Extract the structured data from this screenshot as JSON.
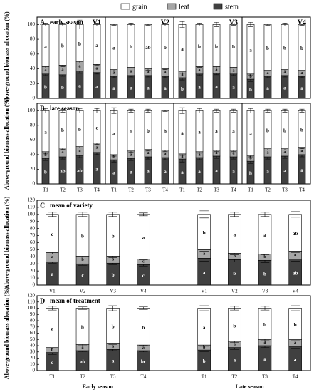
{
  "legend": [
    {
      "name": "grain",
      "color": "#ffffff"
    },
    {
      "name": "leaf",
      "color": "#a6a6a6"
    },
    {
      "name": "stem",
      "color": "#404040"
    }
  ],
  "chart_data": [
    {
      "type": "stacked_bar",
      "panel": "A",
      "title": "early season",
      "subtitle": "V1",
      "ylabel": "Above-ground biomass allocation (%)",
      "ylim": [
        0,
        110
      ],
      "yticks": [
        0,
        20,
        40,
        60,
        80,
        100
      ],
      "series": [
        {
          "values": [
            57,
            55,
            50,
            54
          ],
          "errors": [
            2,
            2,
            6,
            2
          ],
          "letters": [
            "a",
            "b",
            "b",
            "a"
          ]
        },
        {
          "values": [
            10,
            13,
            13,
            11
          ],
          "errors": [
            2,
            2,
            2,
            1
          ],
          "letters": [
            "a",
            "a",
            "a",
            "a"
          ]
        },
        {
          "values": [
            33,
            32,
            37,
            35
          ],
          "errors": [
            2,
            2,
            3,
            2
          ],
          "letters": [
            "b",
            "b",
            "a",
            "a"
          ]
        }
      ]
    },
    {
      "type": "stacked_bar",
      "subtitle": "V2",
      "ylim": [
        0,
        110
      ],
      "series": [
        {
          "values": [
            61,
            58,
            60,
            60
          ],
          "errors": [
            1,
            2,
            1,
            2
          ],
          "letters": [
            "a",
            "b",
            "ab",
            "b"
          ]
        },
        {
          "values": [
            9,
            11,
            9,
            10
          ],
          "errors": [
            2,
            1,
            2,
            1
          ],
          "letters": [
            "a",
            "a",
            "a",
            "a"
          ]
        },
        {
          "values": [
            30,
            31,
            31,
            30
          ],
          "errors": [
            2,
            2,
            2,
            2
          ],
          "letters": [
            "a",
            "a",
            "a",
            "a"
          ]
        }
      ]
    },
    {
      "type": "stacked_bar",
      "subtitle": "V3",
      "ylim": [
        0,
        110
      ],
      "series": [
        {
          "values": [
            64,
            57,
            57,
            58
          ],
          "errors": [
            4,
            2,
            3,
            1
          ],
          "letters": [
            "a",
            "b",
            "b",
            "b"
          ]
        },
        {
          "values": [
            8,
            10,
            9,
            9
          ],
          "errors": [
            2,
            1,
            2,
            1
          ],
          "letters": [
            "a",
            "a",
            "a",
            "a"
          ]
        },
        {
          "values": [
            28,
            33,
            34,
            33
          ],
          "errors": [
            3,
            2,
            2,
            2
          ],
          "letters": [
            "b",
            "a",
            "a",
            "a"
          ]
        }
      ]
    },
    {
      "type": "stacked_bar",
      "subtitle": "V4",
      "ylim": [
        0,
        110
      ],
      "series": [
        {
          "values": [
            67,
            62,
            61,
            62
          ],
          "errors": [
            3,
            1,
            2,
            1
          ],
          "letters": [
            "a",
            "b",
            "b",
            "b"
          ]
        },
        {
          "values": [
            7,
            8,
            8,
            8
          ],
          "errors": [
            2,
            1,
            2,
            1
          ],
          "letters": [
            "b",
            "a",
            "a",
            "a"
          ]
        },
        {
          "values": [
            26,
            30,
            31,
            30
          ],
          "errors": [
            3,
            2,
            2,
            2
          ],
          "letters": [
            "b",
            "a",
            "a",
            "a"
          ]
        }
      ]
    },
    {
      "type": "stacked_bar",
      "panel": "B",
      "title": "late season",
      "ylabel": "Above-ground biomass allocation (%)",
      "ylim": [
        0,
        110
      ],
      "yticks": [
        0,
        20,
        40,
        60,
        80,
        100
      ],
      "categories": [
        "T1",
        "T2",
        "T3",
        "T4"
      ],
      "series": [
        {
          "values": [
            56,
            51,
            49,
            44
          ],
          "errors": [
            3,
            2,
            3,
            3
          ],
          "letters": [
            "a",
            "b",
            "b",
            "c"
          ]
        },
        {
          "values": [
            9,
            12,
            12,
            13
          ],
          "errors": [
            3,
            2,
            2,
            2
          ],
          "letters": [
            "b",
            "a",
            "a",
            "a"
          ]
        },
        {
          "values": [
            35,
            37,
            39,
            43
          ],
          "errors": [
            3,
            3,
            3,
            3
          ],
          "letters": [
            "b",
            "ab",
            "ab",
            "a"
          ]
        }
      ]
    },
    {
      "type": "stacked_bar",
      "ylim": [
        0,
        110
      ],
      "categories": [
        "T1",
        "T2",
        "T3",
        "T4"
      ],
      "series": [
        {
          "values": [
            60,
            55,
            53,
            54
          ],
          "errors": [
            4,
            2,
            2,
            1
          ],
          "letters": [
            "a",
            "b",
            "b",
            "b"
          ]
        },
        {
          "values": [
            7,
            10,
            10,
            10
          ],
          "errors": [
            2,
            2,
            2,
            2
          ],
          "letters": [
            "b",
            "a",
            "a",
            "a"
          ]
        },
        {
          "values": [
            33,
            35,
            37,
            36
          ],
          "errors": [
            3,
            3,
            3,
            3
          ],
          "letters": [
            "a",
            "a",
            "a",
            "a"
          ]
        }
      ]
    },
    {
      "type": "stacked_bar",
      "ylim": [
        0,
        110
      ],
      "categories": [
        "T1",
        "T2",
        "T3",
        "T4"
      ],
      "series": [
        {
          "values": [
            59,
            56,
            54,
            54
          ],
          "errors": [
            4,
            3,
            2,
            2
          ],
          "letters": [
            "a",
            "a",
            "a",
            "a"
          ]
        },
        {
          "values": [
            7,
            8,
            8,
            9
          ],
          "errors": [
            2,
            2,
            2,
            2
          ],
          "letters": [
            "a",
            "a",
            "a",
            "a"
          ]
        },
        {
          "values": [
            34,
            36,
            38,
            37
          ],
          "errors": [
            4,
            3,
            3,
            3
          ],
          "letters": [
            "a",
            "a",
            "a",
            "a"
          ]
        }
      ]
    },
    {
      "type": "stacked_bar",
      "ylim": [
        0,
        110
      ],
      "categories": [
        "T1",
        "T2",
        "T3",
        "T4"
      ],
      "series": [
        {
          "values": [
            61,
            52,
            52,
            50
          ],
          "errors": [
            3,
            2,
            2,
            2
          ],
          "letters": [
            "a",
            "b",
            "b",
            "b"
          ]
        },
        {
          "values": [
            8,
            11,
            10,
            10
          ],
          "errors": [
            2,
            2,
            2,
            2
          ],
          "letters": [
            "b",
            "a",
            "a",
            "a"
          ]
        },
        {
          "values": [
            31,
            37,
            38,
            40
          ],
          "errors": [
            3,
            3,
            3,
            3
          ],
          "letters": [
            "b",
            "a",
            "a",
            "a"
          ]
        }
      ]
    },
    {
      "type": "stacked_bar",
      "panel": "C",
      "title": "mean of variety",
      "ylabel": "Above-ground biomass allocation (%)",
      "ylim": [
        0,
        120
      ],
      "yticks": [
        0,
        10,
        20,
        30,
        40,
        50,
        60,
        70,
        80,
        90,
        100,
        110,
        120
      ],
      "categories": [
        "V1",
        "V2",
        "V3",
        "V4",
        "V1",
        "V2",
        "V3",
        "V4"
      ],
      "series": [
        {
          "values": [
            54,
            59,
            59,
            63,
            50,
            55,
            56,
            52
          ],
          "errors": [
            3,
            3,
            3,
            2,
            5,
            3,
            3,
            4
          ],
          "letters": [
            "c",
            "b",
            "b",
            "a",
            "b",
            "a",
            "a",
            "ab"
          ]
        },
        {
          "values": [
            13,
            11,
            10,
            8,
            12,
            9,
            9,
            11
          ],
          "errors": [
            2,
            1,
            2,
            1,
            2,
            2,
            1,
            2
          ],
          "letters": [
            "a",
            "b",
            "b",
            "c",
            "a",
            "b",
            "b",
            "a"
          ]
        },
        {
          "values": [
            33,
            30,
            31,
            29,
            38,
            36,
            35,
            37
          ],
          "errors": [
            2,
            2,
            2,
            2,
            4,
            3,
            3,
            3
          ],
          "letters": [
            "a",
            "c",
            "b",
            "c",
            "a",
            "b",
            "b",
            "ab"
          ]
        }
      ]
    },
    {
      "type": "stacked_bar",
      "panel": "D",
      "title": "mean of treatment",
      "ylabel": "Above-ground biomass allocation (%)",
      "ylim": [
        0,
        120
      ],
      "yticks": [
        0,
        10,
        20,
        30,
        40,
        50,
        60,
        70,
        80,
        90,
        100,
        110,
        120
      ],
      "categories": [
        "T1",
        "T2",
        "T3",
        "T4",
        "T1",
        "T2",
        "T3",
        "T4"
      ],
      "group_labels": [
        "Early season",
        "Late season"
      ],
      "series": [
        {
          "values": [
            63,
            58,
            56,
            59,
            59,
            53,
            50,
            50
          ],
          "errors": [
            3,
            2,
            4,
            2,
            4,
            3,
            3,
            4
          ],
          "letters": [
            "a",
            "b",
            "b",
            "b",
            "a",
            "b",
            "b",
            "b"
          ]
        },
        {
          "values": [
            8,
            10,
            10,
            9,
            8,
            10,
            10,
            11
          ],
          "errors": [
            2,
            2,
            2,
            1,
            2,
            2,
            2,
            2
          ],
          "letters": [
            "b",
            "a",
            "a",
            "a",
            "b",
            "a",
            "a",
            "a"
          ]
        },
        {
          "values": [
            29,
            32,
            34,
            32,
            33,
            37,
            40,
            39
          ],
          "errors": [
            3,
            2,
            2,
            2,
            3,
            3,
            3,
            3
          ],
          "letters": [
            "c",
            "ab",
            "a",
            "bc",
            "b",
            "a",
            "a",
            "a"
          ]
        }
      ]
    }
  ]
}
